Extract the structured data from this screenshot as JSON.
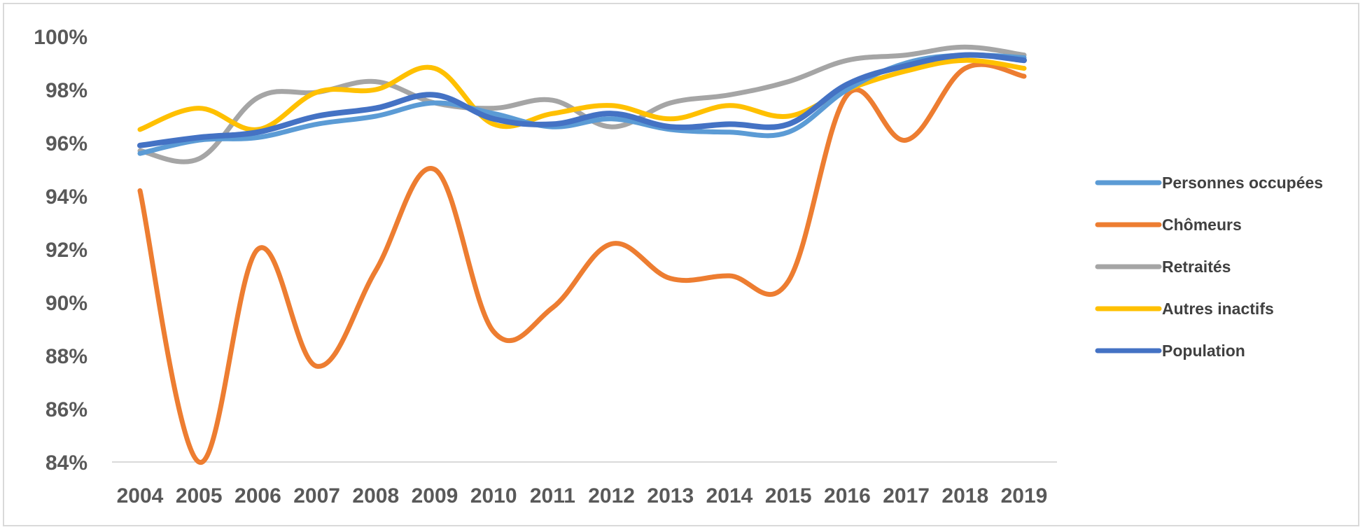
{
  "chart_data": {
    "type": "line",
    "title": "",
    "xlabel": "",
    "ylabel": "",
    "x": [
      "2004",
      "2005",
      "2006",
      "2007",
      "2008",
      "2009",
      "2010",
      "2011",
      "2012",
      "2013",
      "2014",
      "2015",
      "2016",
      "2017",
      "2018",
      "2019"
    ],
    "y_ticks": [
      "84%",
      "86%",
      "88%",
      "90%",
      "92%",
      "94%",
      "96%",
      "98%",
      "100%"
    ],
    "ylim": [
      84,
      100
    ],
    "grid": "baseline only",
    "smooth": true,
    "legend_position": "right",
    "series": [
      {
        "name": "Personnes occupées",
        "color": "#5b9bd5",
        "values": [
          95.6,
          96.1,
          96.2,
          96.7,
          97.0,
          97.5,
          97.1,
          96.6,
          96.9,
          96.5,
          96.4,
          96.4,
          98.0,
          99.0,
          99.3,
          99.2
        ]
      },
      {
        "name": "Chômeurs",
        "color": "#ed7d31",
        "values": [
          94.2,
          84.0,
          92.0,
          87.6,
          91.2,
          95.0,
          88.9,
          89.8,
          92.2,
          90.9,
          91.0,
          90.8,
          97.8,
          96.1,
          98.8,
          98.5
        ]
      },
      {
        "name": "Retraités",
        "color": "#a5a5a5",
        "values": [
          95.7,
          95.4,
          97.7,
          97.9,
          98.3,
          97.5,
          97.3,
          97.6,
          96.6,
          97.5,
          97.8,
          98.3,
          99.1,
          99.3,
          99.6,
          99.3
        ]
      },
      {
        "name": "Autres inactifs",
        "color": "#ffc000",
        "values": [
          96.5,
          97.3,
          96.5,
          97.9,
          98.0,
          98.8,
          96.7,
          97.1,
          97.4,
          96.9,
          97.4,
          97.0,
          98.0,
          98.7,
          99.1,
          98.8
        ]
      },
      {
        "name": "Population",
        "color": "#4472c4",
        "values": [
          95.9,
          96.2,
          96.4,
          97.0,
          97.3,
          97.8,
          96.9,
          96.7,
          97.1,
          96.6,
          96.7,
          96.7,
          98.2,
          98.9,
          99.3,
          99.1
        ]
      }
    ]
  }
}
